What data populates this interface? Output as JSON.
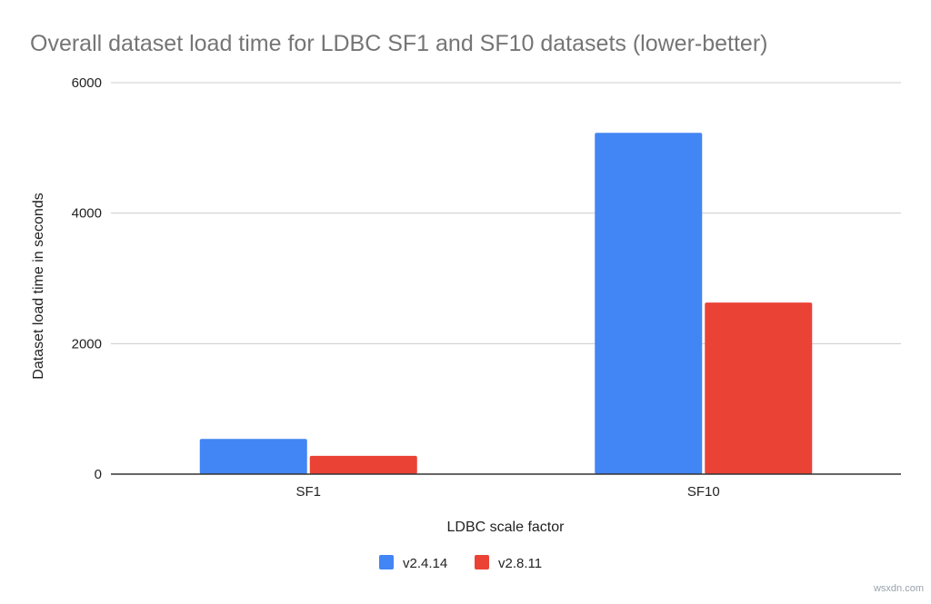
{
  "chart_data": {
    "type": "bar",
    "title": "Overall dataset load time for LDBC SF1 and SF10 datasets (lower-better)",
    "xlabel": "LDBC scale factor",
    "ylabel": "Dataset load time in seconds",
    "categories": [
      "SF1",
      "SF10"
    ],
    "series": [
      {
        "name": "v2.4.14",
        "values": [
          540,
          5230
        ]
      },
      {
        "name": "v2.8.11",
        "values": [
          280,
          2630
        ]
      }
    ],
    "ylim": [
      0,
      6000
    ],
    "yticks": [
      "0",
      "2000",
      "4000",
      "6000"
    ],
    "grid": true,
    "legend_position": "bottom-center"
  },
  "colors": {
    "series": [
      "#4285f4",
      "#ea4335"
    ],
    "title": "#757575",
    "axis_text": "#222222",
    "grid": "#cccccc",
    "axis_line": "#333333"
  },
  "watermark": "wsxdn.com"
}
